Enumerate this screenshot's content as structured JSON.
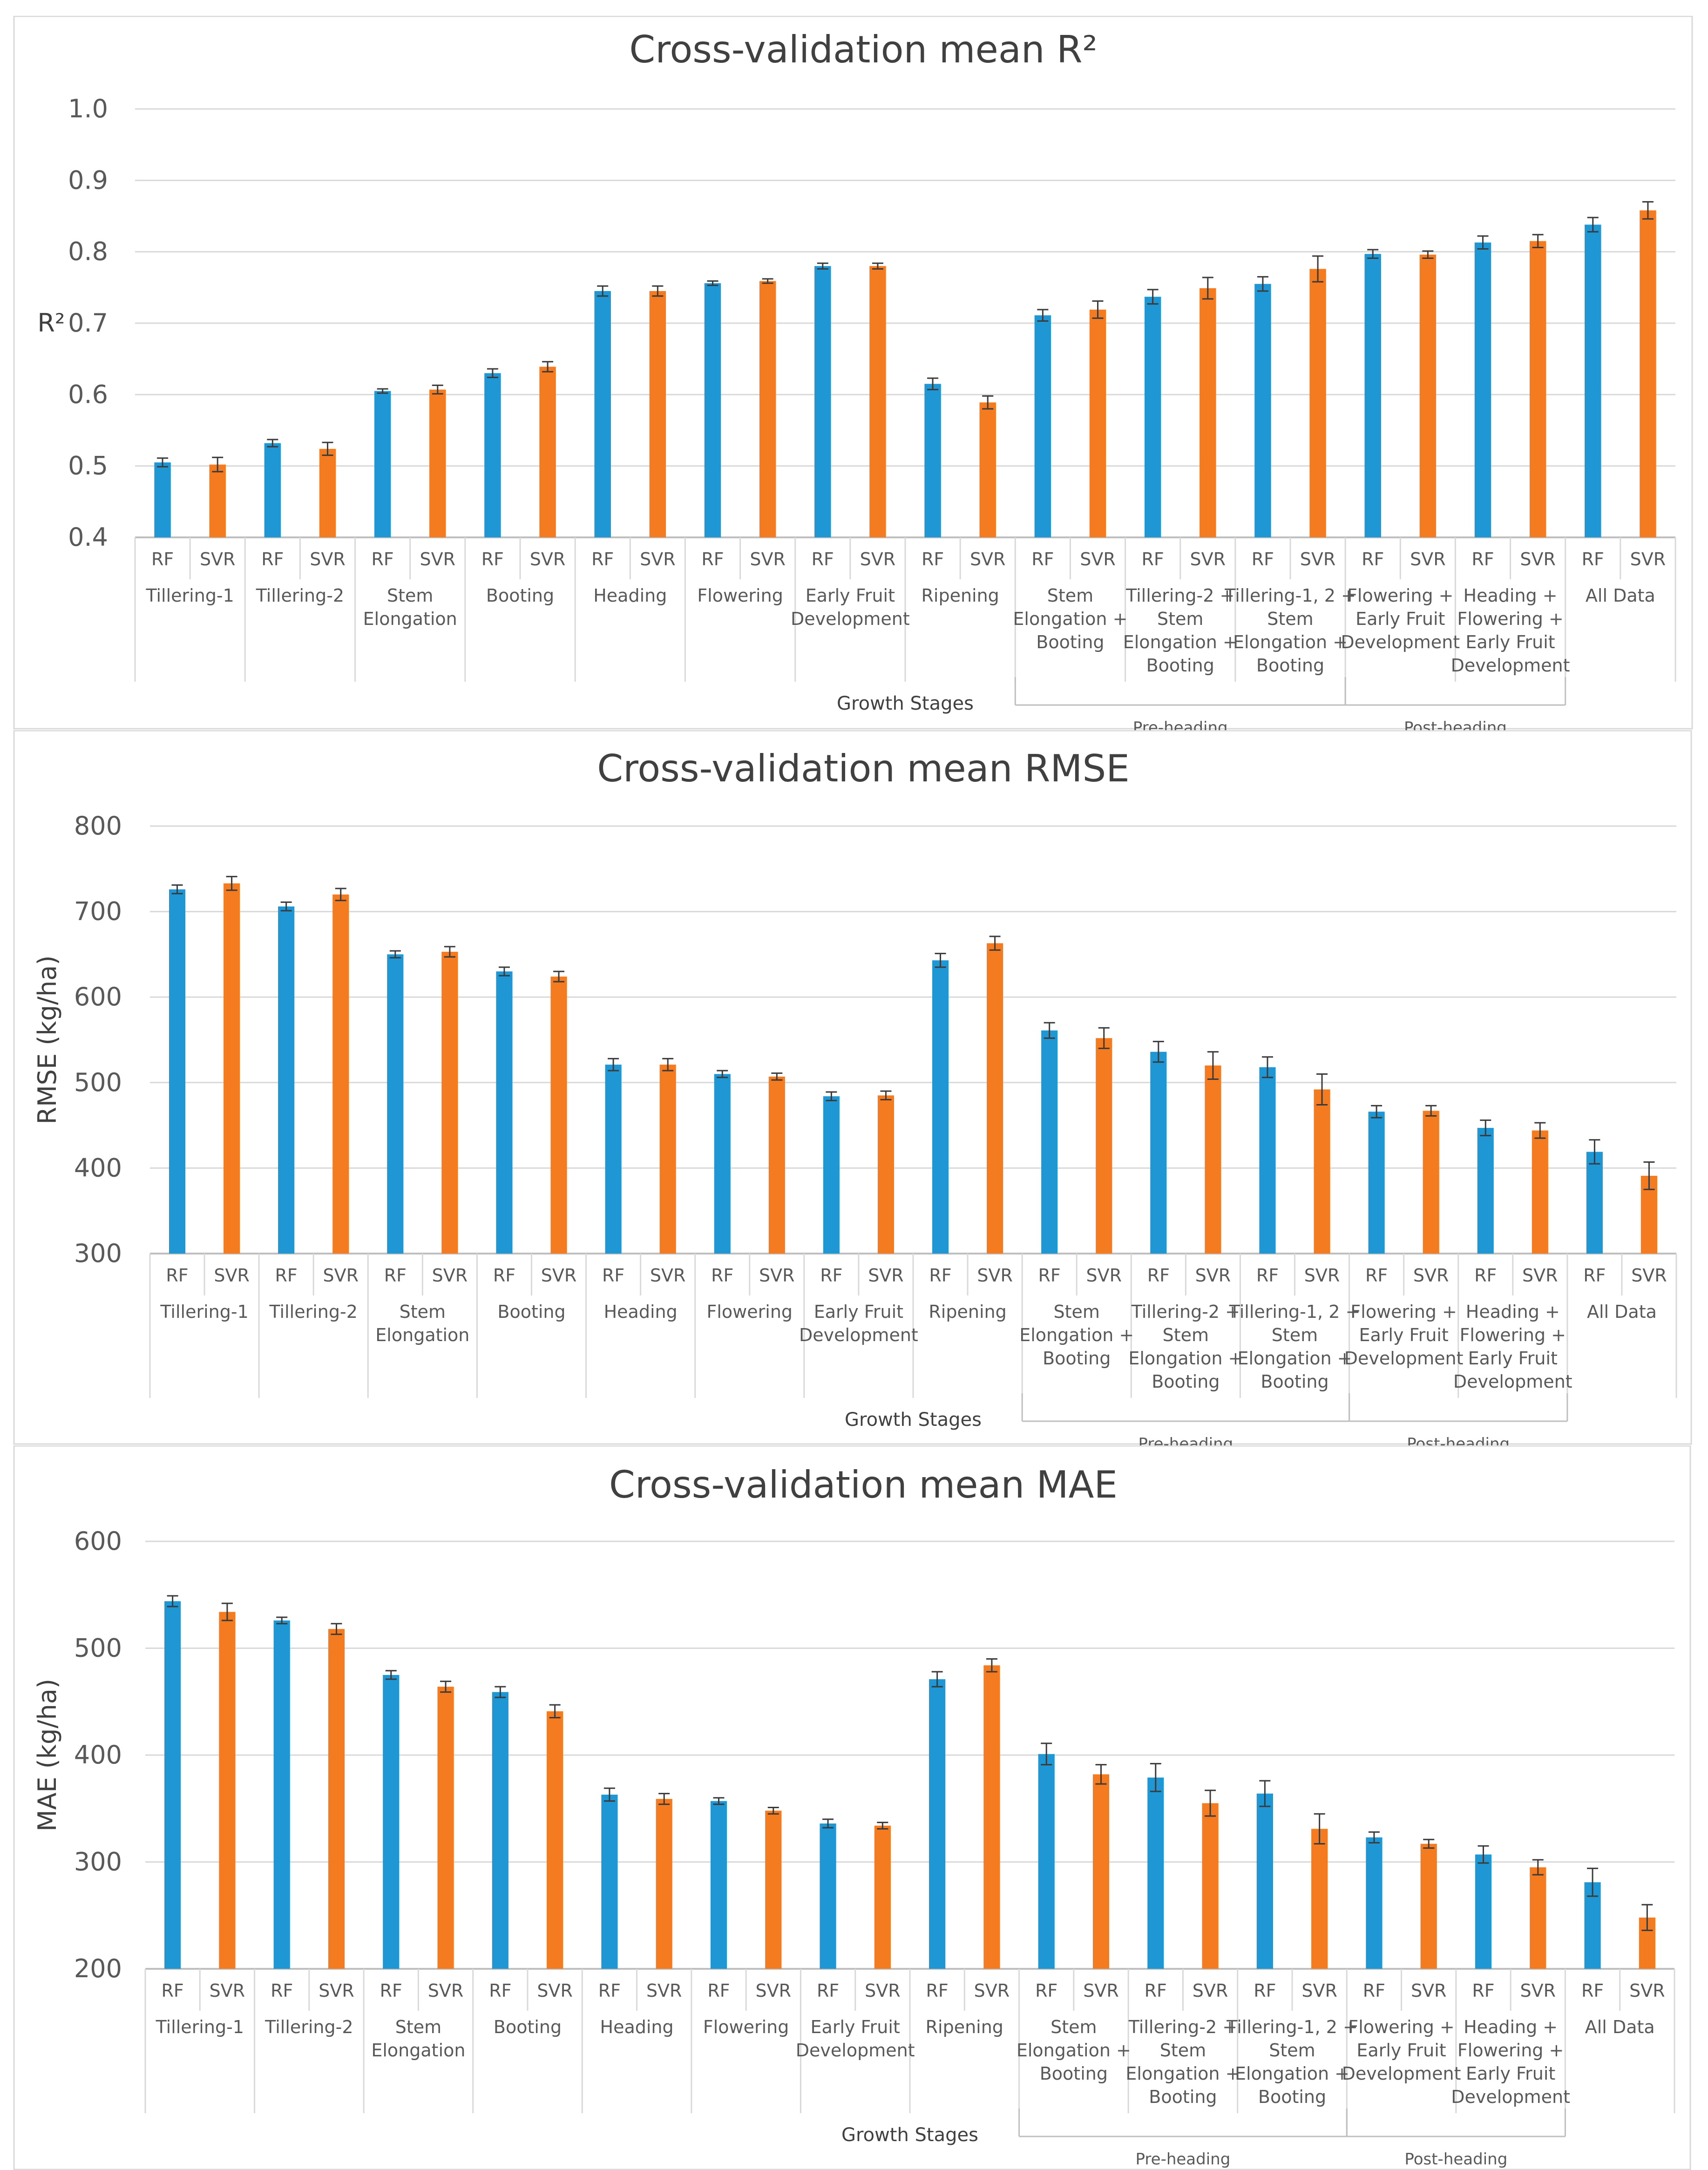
{
  "shared": {
    "x_title": "Growth Stages",
    "model_labels": [
      "RF",
      "SVR"
    ],
    "groups": [
      [
        "Tillering-1"
      ],
      [
        "Tillering-2"
      ],
      [
        "Stem",
        "Elongation"
      ],
      [
        "Booting"
      ],
      [
        "Heading"
      ],
      [
        "Flowering"
      ],
      [
        "Early Fruit",
        "Development"
      ],
      [
        "Ripening"
      ],
      [
        "Stem",
        "Elongation +",
        "Booting"
      ],
      [
        "Tillering-2 +",
        "Stem",
        "Elongation +",
        "Booting"
      ],
      [
        "Tillering-1, 2 +",
        "Stem",
        "Elongation +",
        "Booting"
      ],
      [
        "Flowering +",
        "Early Fruit",
        "Development"
      ],
      [
        "Heading +",
        "Flowering +",
        "Early Fruit",
        "Development"
      ],
      [
        "All Data"
      ]
    ],
    "brackets": [
      {
        "label": "Pre-heading",
        "from_group": 8,
        "to_group": 10
      },
      {
        "label": "Post-heading",
        "from_group": 11,
        "to_group": 12
      }
    ],
    "colors": {
      "RF": "#1f97d4",
      "SVR": "#f47b20"
    }
  },
  "chart_data": [
    {
      "type": "bar",
      "title": "Cross-validation mean R²",
      "ylabel": "R²",
      "ylim": [
        0.4,
        1.0
      ],
      "yticks": [
        "0.4",
        "0.5",
        "0.6",
        "0.7",
        "0.8",
        "0.9",
        "1.0"
      ],
      "series": [
        {
          "name": "RF",
          "values": [
            0.505,
            0.532,
            0.605,
            0.63,
            0.745,
            0.756,
            0.78,
            0.615,
            0.711,
            0.737,
            0.755,
            0.797,
            0.813,
            0.838
          ],
          "errors": [
            0.006,
            0.005,
            0.003,
            0.006,
            0.007,
            0.003,
            0.004,
            0.008,
            0.008,
            0.01,
            0.01,
            0.006,
            0.009,
            0.01
          ]
        },
        {
          "name": "SVR",
          "values": [
            0.502,
            0.524,
            0.607,
            0.639,
            0.745,
            0.759,
            0.78,
            0.589,
            0.719,
            0.749,
            0.776,
            0.796,
            0.815,
            0.858
          ],
          "errors": [
            0.01,
            0.009,
            0.006,
            0.007,
            0.007,
            0.003,
            0.004,
            0.009,
            0.012,
            0.015,
            0.018,
            0.005,
            0.009,
            0.012
          ]
        }
      ]
    },
    {
      "type": "bar",
      "title": "Cross-validation mean RMSE",
      "ylabel": "RMSE (kg/ha)",
      "ylim": [
        300,
        800
      ],
      "yticks": [
        "300",
        "400",
        "500",
        "600",
        "700",
        "800"
      ],
      "series": [
        {
          "name": "RF",
          "values": [
            726,
            706,
            650,
            630,
            521,
            510,
            484,
            643,
            561,
            536,
            518,
            466,
            447,
            419
          ],
          "errors": [
            5,
            5,
            4,
            5,
            7,
            4,
            5,
            8,
            9,
            12,
            12,
            7,
            9,
            14
          ]
        },
        {
          "name": "SVR",
          "values": [
            733,
            720,
            653,
            624,
            521,
            507,
            485,
            663,
            552,
            520,
            492,
            467,
            444,
            391
          ],
          "errors": [
            8,
            7,
            6,
            6,
            7,
            4,
            5,
            8,
            12,
            16,
            18,
            6,
            9,
            16
          ]
        }
      ]
    },
    {
      "type": "bar",
      "title": "Cross-validation mean MAE",
      "ylabel": "MAE (kg/ha)",
      "ylim": [
        200,
        600
      ],
      "yticks": [
        "200",
        "300",
        "400",
        "500",
        "600"
      ],
      "series": [
        {
          "name": "RF",
          "values": [
            544,
            526,
            475,
            459,
            363,
            357,
            336,
            471,
            401,
            379,
            364,
            323,
            307,
            281
          ],
          "errors": [
            5,
            3,
            4,
            5,
            6,
            3,
            4,
            7,
            10,
            13,
            12,
            5,
            8,
            13
          ]
        },
        {
          "name": "SVR",
          "values": [
            534,
            518,
            464,
            441,
            359,
            348,
            334,
            484,
            382,
            355,
            331,
            317,
            295,
            248
          ],
          "errors": [
            8,
            5,
            5,
            6,
            5,
            3,
            3,
            6,
            9,
            12,
            14,
            4,
            7,
            12
          ]
        }
      ]
    }
  ]
}
